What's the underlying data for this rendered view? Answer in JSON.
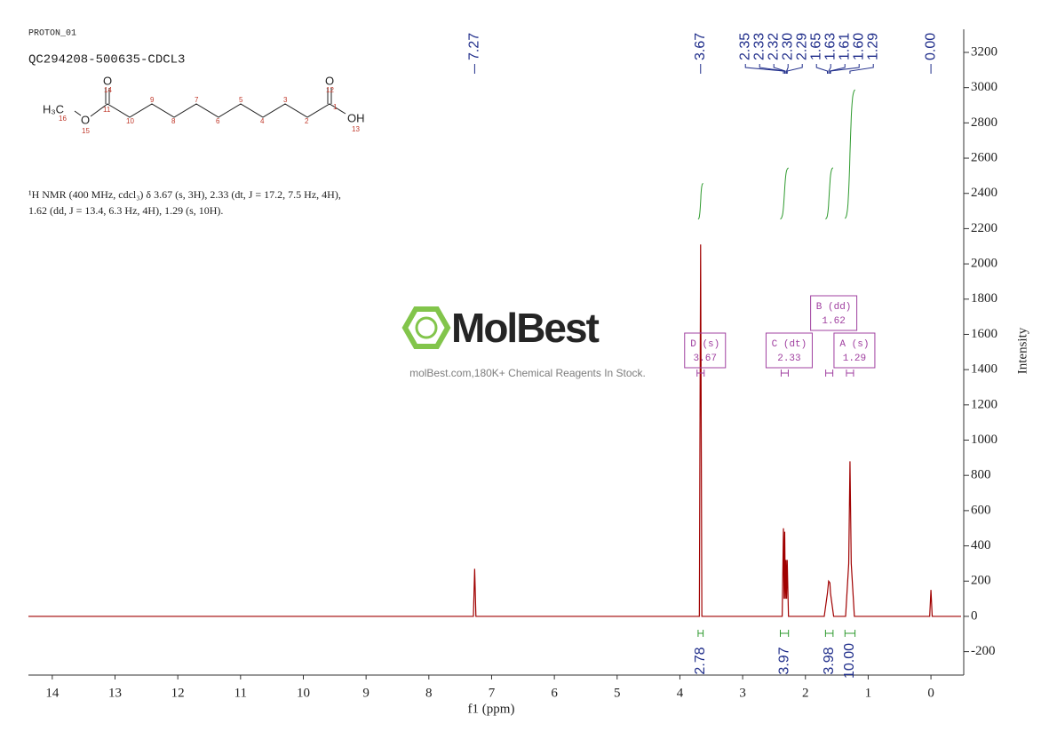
{
  "chart_data": {
    "type": "line",
    "title": "PROTON_01",
    "subtitle": "QC294208-500635-CDCL3",
    "description": [
      "¹H NMR (400 MHz, cdcl₃) δ 3.67 (s, 3H), 2.33 (dt, J = 17.2, 7.5 Hz, 4H),",
      "1.62 (dd, J = 13.4, 6.3 Hz, 4H), 1.29 (s, 10H)."
    ],
    "structure": {
      "groups": [
        "H₃C",
        "O",
        "O",
        "O",
        "OH"
      ],
      "numbers": [
        "16",
        "15",
        "14",
        "11",
        "10",
        "9",
        "8",
        "7",
        "6",
        "5",
        "4",
        "3",
        "2",
        "1",
        "12",
        "13"
      ]
    },
    "watermark": {
      "logo": "MolBest",
      "tagline": "molBest.com,180K+ Chemical Reagents In Stock."
    },
    "xlabel": "f1 (ppm)",
    "ylabel": "Intensity",
    "xlim": [
      14.38,
      -0.48
    ],
    "ylim": [
      -333,
      3331
    ],
    "xticks": [
      14,
      13,
      12,
      11,
      10,
      9,
      8,
      7,
      6,
      5,
      4,
      3,
      2,
      1,
      0
    ],
    "yticks": [
      -200,
      0,
      200,
      400,
      600,
      800,
      1000,
      1200,
      1400,
      1600,
      1800,
      2000,
      2200,
      2400,
      2600,
      2800,
      3000,
      3200
    ],
    "series": [
      {
        "color": "#a00000",
        "x": [
          14.38,
          7.29,
          7.27,
          7.25,
          3.69,
          3.67,
          3.65,
          2.37,
          2.35,
          2.34,
          2.33,
          2.32,
          2.31,
          2.3,
          2.29,
          2.27,
          1.7,
          1.65,
          1.63,
          1.61,
          1.6,
          1.55,
          1.36,
          1.31,
          1.29,
          1.27,
          1.22,
          0.02,
          0,
          -0.02,
          -0.48
        ],
        "values": [
          0,
          0,
          270,
          0,
          0,
          2110,
          0,
          0,
          500,
          100,
          480,
          100,
          320,
          100,
          320,
          0,
          0,
          130,
          200,
          190,
          130,
          0,
          0,
          300,
          880,
          300,
          0,
          0,
          150,
          0,
          0
        ]
      }
    ],
    "peak_labels": [
      7.27,
      3.67,
      2.35,
      2.33,
      2.32,
      {
        "value": 2.3,
        "label": "2.30"
      },
      2.29,
      1.65,
      1.63,
      1.61,
      {
        "value": 1.6,
        "label": "1.60"
      },
      1.29,
      {
        "value": 0,
        "label": "0.00"
      }
    ],
    "integrals": {
      "values": [
        2.78,
        3.97,
        3.98,
        10
      ],
      "value_labels": [
        "2.78",
        "3.97",
        "3.98",
        "10.00"
      ],
      "ranges": [
        [
          3.71,
          3.63
        ],
        [
          2.4,
          2.27
        ],
        [
          1.68,
          1.56
        ],
        [
          1.37,
          1.21
        ]
      ],
      "color": "#2e9a2e"
    },
    "multiplets": [
      {
        "label": "D (s)",
        "shift": 3.67
      },
      {
        "label": "C (dt)",
        "shift": 2.33
      },
      {
        "label": "B (dd)",
        "shift": 1.62
      },
      {
        "label": "A (s)",
        "shift": 1.29
      }
    ],
    "multiplet_color": "#a040a0",
    "label_color": "#1f2d8a"
  }
}
